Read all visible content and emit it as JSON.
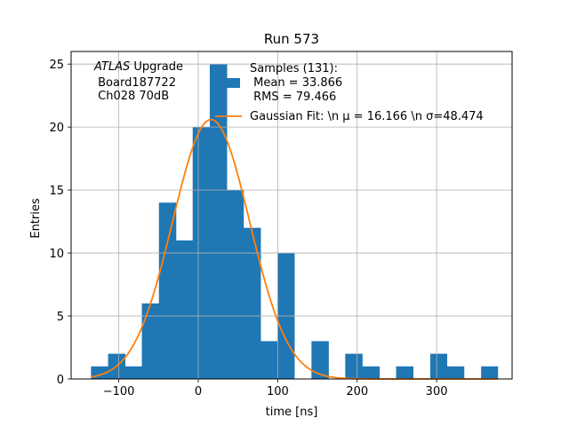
{
  "chart_data": {
    "type": "bar",
    "title": "Run 573",
    "xlabel": "time [ns]",
    "ylabel": "Entries",
    "xlim": [
      -160,
      395
    ],
    "ylim": [
      0,
      26
    ],
    "xticks": [
      -100,
      0,
      100,
      200,
      300
    ],
    "yticks": [
      0,
      5,
      10,
      15,
      20,
      25
    ],
    "grid": true,
    "bins": [
      {
        "x0": -135,
        "x1": -113.5,
        "count": 1
      },
      {
        "x0": -113.5,
        "x1": -92,
        "count": 2
      },
      {
        "x0": -92,
        "x1": -71,
        "count": 1
      },
      {
        "x0": -71,
        "x1": -49.5,
        "count": 6
      },
      {
        "x0": -49.5,
        "x1": -28,
        "count": 14
      },
      {
        "x0": -28,
        "x1": -7,
        "count": 11
      },
      {
        "x0": -7,
        "x1": 14.5,
        "count": 20
      },
      {
        "x0": 14.5,
        "x1": 36,
        "count": 25
      },
      {
        "x0": 36,
        "x1": 57,
        "count": 15
      },
      {
        "x0": 57,
        "x1": 78.5,
        "count": 12
      },
      {
        "x0": 78.5,
        "x1": 100,
        "count": 3
      },
      {
        "x0": 100,
        "x1": 121,
        "count": 10
      },
      {
        "x0": 121,
        "x1": 142.5,
        "count": 0
      },
      {
        "x0": 142.5,
        "x1": 164,
        "count": 3
      },
      {
        "x0": 164,
        "x1": 185,
        "count": 0
      },
      {
        "x0": 185,
        "x1": 206.5,
        "count": 2
      },
      {
        "x0": 206.5,
        "x1": 228,
        "count": 1
      },
      {
        "x0": 228,
        "x1": 249,
        "count": 0
      },
      {
        "x0": 249,
        "x1": 270.5,
        "count": 1
      },
      {
        "x0": 270.5,
        "x1": 292,
        "count": 0
      },
      {
        "x0": 292,
        "x1": 313,
        "count": 2
      },
      {
        "x0": 313,
        "x1": 334.5,
        "count": 1
      },
      {
        "x0": 334.5,
        "x1": 356,
        "count": 0
      },
      {
        "x0": 356,
        "x1": 377,
        "count": 1
      }
    ],
    "fit": {
      "type": "gaussian",
      "mu": 16.166,
      "sigma": 48.474,
      "amplitude": 20.6,
      "x_range": [
        -135,
        377
      ]
    },
    "colors": {
      "histogram": "#1f77b4",
      "fit": "#ff7f0e",
      "grid": "#b0b0b0"
    },
    "annotation": {
      "line1_italic": "ATLAS",
      "line1_rest": " Upgrade",
      "line2": " Board187722",
      "line3": " Ch028 70dB"
    },
    "legend": {
      "placement": "top-right",
      "samples_line1": "Samples (131):",
      "samples_line2": " Mean = 33.866",
      "samples_line3": " RMS = 79.466",
      "fit_label": "Gaussian Fit: \\n μ = 16.166 \\n σ=48.474"
    }
  }
}
